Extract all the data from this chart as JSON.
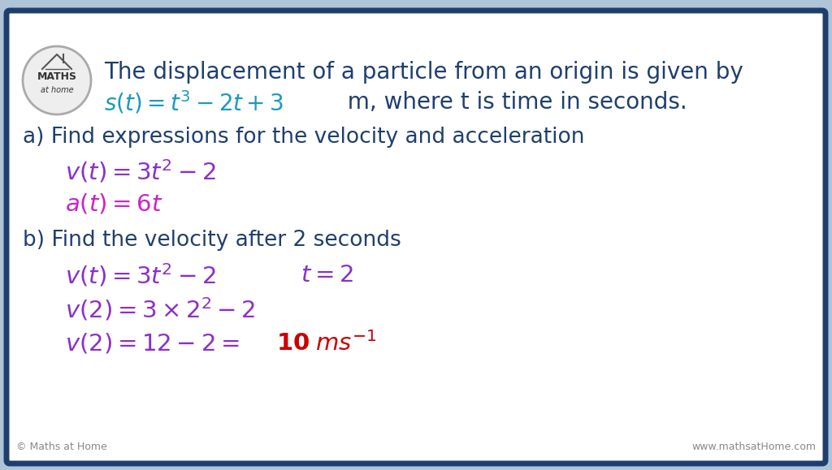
{
  "bg_outer": "#b0c4d8",
  "bg_inner": "#ffffff",
  "border_color": "#1e3f6e",
  "title_color": "#1e3f6e",
  "formula_color": "#1a9abf",
  "purple_color": "#8b2fc9",
  "magenta_color": "#cc22cc",
  "dark_blue": "#1e3f6e",
  "red_color": "#cc0000",
  "footer_color": "#888888",
  "title_line1": "The displacement of a particle from an origin is given by",
  "s_formula": "$s(t) = t^3 - 2t + 3$",
  "s_tail": "  m, where t is time in seconds.",
  "part_a": "a) Find expressions for the velocity and acceleration",
  "v_expr": "$v(t) = 3t^2 - 2$",
  "a_expr": "$a(t) = 6t$",
  "part_b": "b) Find the velocity after 2 seconds",
  "v_expr2": "$v(t) = 3t^2 - 2$",
  "t_eq2": "$t = 2$",
  "v2_line1": "$v(2) = 3 \\times 2^2 - 2$",
  "v2_line2a": "$v(2) = 12 - 2 = $",
  "v2_line2b": "$\\mathbf{10}\\;ms^{-1}$",
  "footer_left": "© Maths at Home",
  "footer_right": "www.mathsatHome.com",
  "logo_text1": "MATHS",
  "logo_text2": "at home"
}
